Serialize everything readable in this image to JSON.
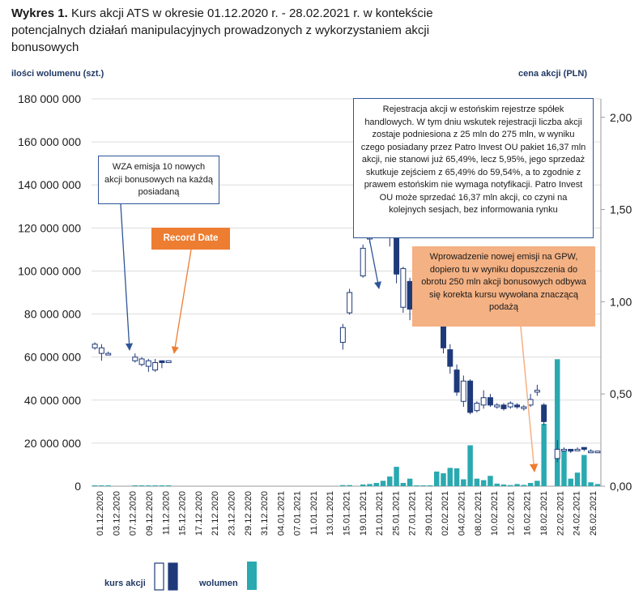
{
  "title": {
    "prefix": "Wykres 1.",
    "text": "Kurs akcji ATS w okresie 01.12.2020 r. - 28.02.2021 r. w kontekście potencjalnych działań manipulacyjnych prowadzonych z wykorzystaniem akcji bonusowych"
  },
  "colors": {
    "navy": "#1f3a7a",
    "teal": "#2aa9b0",
    "orange": "#ed7d31",
    "light_orange": "#f4b183",
    "frame_blue": "#2e5597"
  },
  "labels": {
    "left_axis": "ilości wolumenu (szt.)",
    "right_axis": "cena akcji (PLN)",
    "legend_price": "kurs akcji",
    "legend_volume": "wolumen"
  },
  "annotations": {
    "wza": "WZA emisja 10 nowych akcji bonusowych na każdą posiadaną",
    "record": "Record Date",
    "registration": "Rejestracja akcji w estońskim rejestrze spółek handlowych. W tym dniu wskutek rejestracji liczba akcji zostaje podniesiona z 25 mln do 275 mln, w wyniku czego posiadany przez Patro Invest OU pakiet 16,37 mln akcji, nie stanowi już 65,49%, lecz 5,95%, jego sprzedaż skutkuje zejściem z 65,49% do 59,54%, a to zgodnie z prawem estońskim nie wymaga notyfikacji. Patro Invest OU może sprzedać 16,37 mln akcji, co czyni na kolejnych sesjach, bez informowania rynku",
    "emission": "Wprowadzenie nowej emisji na GPW, dopiero tu w wyniku dopuszczenia do obrotu 250 mln akcji bonusowych odbywa się korekta kursu wywołana znaczącą podażą"
  },
  "chart_data": {
    "type": "candlestick+bar",
    "title": "Kurs akcji ATS w okresie 01.12.2020 r. - 28.02.2021 r.",
    "left_axis": {
      "label": "ilości wolumenu (szt.)",
      "min": 0,
      "max": 180000000,
      "step": 20000000,
      "ticks": [
        "0",
        "20 000 000",
        "40 000 000",
        "60 000 000",
        "80 000 000",
        "100 000 000",
        "120 000 000",
        "140 000 000",
        "160 000 000",
        "180 000 000"
      ]
    },
    "right_axis": {
      "label": "cena akcji (PLN)",
      "min": 0,
      "max": 2.1,
      "ticks": [
        [
          "0,00",
          0
        ],
        [
          "0,50",
          0.5
        ],
        [
          "1,00",
          1
        ],
        [
          "1,50",
          1.5
        ],
        [
          "2,00",
          2
        ]
      ]
    },
    "x_labels": [
      "01.12.2020",
      "03.12.2020",
      "05.12.2020",
      "07.12.2020",
      "09.12.2020",
      "11.12.2020",
      "13.12.2020",
      "15.12.2020",
      "17.12.2020",
      "19.12.2020",
      "21.12.2020",
      "23.12.2020",
      "25.12.2020",
      "27.12.2020",
      "29.12.2020",
      "31.12.2020",
      "02.01.2021",
      "04.01.2021",
      "06.01.2021",
      "07.01.2021",
      "09.01.2021",
      "11.01.2021",
      "13.01.2021",
      "15.01.2021",
      "17.01.2021",
      "19.01.2021",
      "21.01.2021",
      "23.01.2021",
      "25.01.2021",
      "27.01.2021",
      "29.01.2021",
      "31.01.2021",
      "02.02.2021",
      "04.02.2021",
      "06.02.2021",
      "08.02.2021",
      "10.02.2021",
      "12.02.2021",
      "14.02.2021",
      "16.02.2021",
      "18.02.2021",
      "20.02.2021",
      "22.02.2021",
      "24.02.2021",
      "26.02.2021"
    ],
    "x_tick_labels": [
      "01.12.2020",
      "03.12.2020",
      "07.12.2020",
      "09.12.2020",
      "11.12.2020",
      "15.12.2020",
      "17.12.2020",
      "21.12.2020",
      "23.12.2020",
      "29.12.2020",
      "31.12.2020",
      "04.01.2021",
      "07.01.2021",
      "11.01.2021",
      "13.01.2021",
      "15.01.2021",
      "19.01.2021",
      "21.01.2021",
      "25.01.2021",
      "27.01.2021",
      "29.01.2021",
      "02.02.2021",
      "04.02.2021",
      "08.02.2021",
      "10.02.2021",
      "12.02.2021",
      "16.02.2021",
      "18.02.2021",
      "22.02.2021",
      "24.02.2021",
      "26.02.2021"
    ],
    "legend": [
      "kurs akcji",
      "wolumen"
    ],
    "candles": [
      {
        "day": 0,
        "o": 0.75,
        "c": 0.77,
        "h": 0.78,
        "l": 0.74
      },
      {
        "day": 1,
        "o": 0.72,
        "c": 0.75,
        "h": 0.77,
        "l": 0.68
      },
      {
        "day": 2,
        "o": 0.72,
        "c": 0.72,
        "h": 0.73,
        "l": 0.71
      },
      {
        "day": 6,
        "o": 0.68,
        "c": 0.7,
        "h": 0.72,
        "l": 0.67
      },
      {
        "day": 7,
        "o": 0.66,
        "c": 0.69,
        "h": 0.7,
        "l": 0.65
      },
      {
        "day": 8,
        "o": 0.65,
        "c": 0.68,
        "h": 0.69,
        "l": 0.62
      },
      {
        "day": 9,
        "o": 0.63,
        "c": 0.67,
        "h": 0.69,
        "l": 0.62
      },
      {
        "day": 10,
        "o": 0.68,
        "c": 0.67,
        "h": 0.68,
        "l": 0.64
      },
      {
        "day": 11,
        "o": 0.67,
        "c": 0.68,
        "h": 0.68,
        "l": 0.67
      },
      {
        "day": 37,
        "o": 0.78,
        "c": 0.86,
        "h": 0.88,
        "l": 0.74
      },
      {
        "day": 38,
        "o": 0.94,
        "c": 1.05,
        "h": 1.07,
        "l": 0.93
      },
      {
        "day": 40,
        "o": 1.14,
        "c": 1.29,
        "h": 1.31,
        "l": 1.13
      },
      {
        "day": 41,
        "o": 1.34,
        "c": 1.49,
        "h": 1.57,
        "l": 1.32
      },
      {
        "day": 42,
        "o": 1.58,
        "c": 1.89,
        "h": 1.9,
        "l": 1.5
      },
      {
        "day": 43,
        "o": 1.88,
        "c": 1.62,
        "h": 1.93,
        "l": 1.6
      },
      {
        "day": 44,
        "o": 1.61,
        "c": 1.36,
        "h": 1.64,
        "l": 1.3
      },
      {
        "day": 45,
        "o": 1.41,
        "c": 1.15,
        "h": 1.45,
        "l": 1.1
      },
      {
        "day": 46,
        "o": 0.97,
        "c": 1.18,
        "h": 1.19,
        "l": 0.94
      },
      {
        "day": 47,
        "o": 1.11,
        "c": 0.96,
        "h": 1.13,
        "l": 0.9
      },
      {
        "day": 48,
        "o": 1.1,
        "c": 0.95,
        "h": 1.12,
        "l": 0.92
      },
      {
        "day": 49,
        "o": 0.96,
        "c": 0.96,
        "h": 0.99,
        "l": 0.94
      },
      {
        "day": 50,
        "o": 0.98,
        "c": 1.01,
        "h": 1.02,
        "l": 0.93
      },
      {
        "day": 51,
        "o": 0.99,
        "c": 0.89,
        "h": 1.0,
        "l": 0.87
      },
      {
        "day": 52,
        "o": 0.88,
        "c": 0.75,
        "h": 0.89,
        "l": 0.72
      },
      {
        "day": 53,
        "o": 0.74,
        "c": 0.65,
        "h": 0.77,
        "l": 0.61
      },
      {
        "day": 54,
        "o": 0.63,
        "c": 0.51,
        "h": 0.66,
        "l": 0.49
      },
      {
        "day": 55,
        "o": 0.46,
        "c": 0.57,
        "h": 0.6,
        "l": 0.43
      },
      {
        "day": 56,
        "o": 0.57,
        "c": 0.4,
        "h": 0.58,
        "l": 0.39
      },
      {
        "day": 57,
        "o": 0.41,
        "c": 0.45,
        "h": 0.46,
        "l": 0.4
      },
      {
        "day": 58,
        "o": 0.44,
        "c": 0.48,
        "h": 0.52,
        "l": 0.42
      },
      {
        "day": 59,
        "o": 0.48,
        "c": 0.44,
        "h": 0.5,
        "l": 0.43
      },
      {
        "day": 60,
        "o": 0.43,
        "c": 0.44,
        "h": 0.45,
        "l": 0.42
      },
      {
        "day": 61,
        "o": 0.44,
        "c": 0.42,
        "h": 0.45,
        "l": 0.41
      },
      {
        "day": 62,
        "o": 0.43,
        "c": 0.45,
        "h": 0.46,
        "l": 0.42
      },
      {
        "day": 63,
        "o": 0.44,
        "c": 0.43,
        "h": 0.45,
        "l": 0.42
      },
      {
        "day": 64,
        "o": 0.43,
        "c": 0.43,
        "h": 0.44,
        "l": 0.41
      },
      {
        "day": 65,
        "o": 0.44,
        "c": 0.47,
        "h": 0.5,
        "l": 0.43
      },
      {
        "day": 66,
        "o": 0.51,
        "c": 0.52,
        "h": 0.55,
        "l": 0.49
      },
      {
        "day": 67,
        "o": 0.44,
        "c": 0.35,
        "h": 0.45,
        "l": 0.33
      },
      {
        "day": 69,
        "o": 0.15,
        "c": 0.2,
        "h": 0.25,
        "l": 0.13
      },
      {
        "day": 70,
        "o": 0.2,
        "c": 0.2,
        "h": 0.21,
        "l": 0.19
      },
      {
        "day": 71,
        "o": 0.2,
        "c": 0.19,
        "h": 0.2,
        "l": 0.18
      },
      {
        "day": 72,
        "o": 0.2,
        "c": 0.2,
        "h": 0.21,
        "l": 0.19
      },
      {
        "day": 73,
        "o": 0.21,
        "c": 0.2,
        "h": 0.21,
        "l": 0.19
      },
      {
        "day": 74,
        "o": 0.19,
        "c": 0.19,
        "h": 0.2,
        "l": 0.18
      },
      {
        "day": 75,
        "o": 0.19,
        "c": 0.19,
        "h": 0.19,
        "l": 0.18
      }
    ],
    "volume": [
      {
        "day": 0,
        "v": 100000
      },
      {
        "day": 1,
        "v": 100000
      },
      {
        "day": 2,
        "v": 100000
      },
      {
        "day": 6,
        "v": 100000
      },
      {
        "day": 7,
        "v": 100000
      },
      {
        "day": 8,
        "v": 100000
      },
      {
        "day": 9,
        "v": 100000
      },
      {
        "day": 10,
        "v": 100000
      },
      {
        "day": 11,
        "v": 100000
      },
      {
        "day": 37,
        "v": 500000
      },
      {
        "day": 38,
        "v": 500000
      },
      {
        "day": 40,
        "v": 800000
      },
      {
        "day": 41,
        "v": 1000000
      },
      {
        "day": 42,
        "v": 1500000
      },
      {
        "day": 43,
        "v": 2500000
      },
      {
        "day": 44,
        "v": 4500000
      },
      {
        "day": 45,
        "v": 9000000
      },
      {
        "day": 46,
        "v": 1500000
      },
      {
        "day": 47,
        "v": 3500000
      },
      {
        "day": 48,
        "v": 200000
      },
      {
        "day": 49,
        "v": 300000
      },
      {
        "day": 50,
        "v": 400000
      },
      {
        "day": 51,
        "v": 6800000
      },
      {
        "day": 52,
        "v": 6000000
      },
      {
        "day": 53,
        "v": 8500000
      },
      {
        "day": 54,
        "v": 8300000
      },
      {
        "day": 55,
        "v": 3200000
      },
      {
        "day": 56,
        "v": 19000000
      },
      {
        "day": 57,
        "v": 3500000
      },
      {
        "day": 58,
        "v": 2800000
      },
      {
        "day": 59,
        "v": 4800000
      },
      {
        "day": 60,
        "v": 1200000
      },
      {
        "day": 61,
        "v": 800000
      },
      {
        "day": 62,
        "v": 500000
      },
      {
        "day": 63,
        "v": 1000000
      },
      {
        "day": 64,
        "v": 600000
      },
      {
        "day": 65,
        "v": 1500000
      },
      {
        "day": 66,
        "v": 2500000
      },
      {
        "day": 67,
        "v": 29000000
      },
      {
        "day": 69,
        "v": 59000000
      },
      {
        "day": 70,
        "v": 17000000
      },
      {
        "day": 71,
        "v": 3500000
      },
      {
        "day": 72,
        "v": 6300000
      },
      {
        "day": 73,
        "v": 14500000
      },
      {
        "day": 74,
        "v": 1800000
      },
      {
        "day": 75,
        "v": 1000000
      }
    ]
  }
}
